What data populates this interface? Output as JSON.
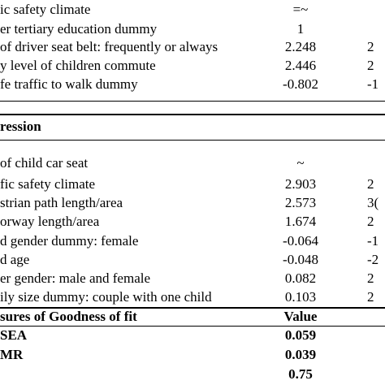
{
  "table": {
    "rows": [
      {
        "label": "ic safety climate",
        "value": "=~"
      },
      {
        "label": "er tertiary education dummy",
        "value": "1"
      },
      {
        "label": "of driver seat belt: frequently or always",
        "value": "2.248",
        "extra": "2"
      },
      {
        "label": "y level of children commute",
        "value": "2.446",
        "extra": "2"
      },
      {
        "label": "fe traffic to walk dummy",
        "value": "-0.802",
        "extra": "-1"
      },
      {
        "label": "ression",
        "bold": true
      },
      {
        "label": "of child car seat",
        "value": "~"
      },
      {
        "label": "fic safety climate",
        "value": "2.903",
        "extra": "2"
      },
      {
        "label": "strian path length/area",
        "value": "2.573",
        "extra": "3("
      },
      {
        "label": "orway length/area",
        "value": "1.674",
        "extra": "2"
      },
      {
        "label": "d gender dummy: female",
        "value": "-0.064",
        "extra": "-1"
      },
      {
        "label": "d age",
        "value": "-0.048",
        "extra": "-2"
      },
      {
        "label": "er gender: male and female",
        "value": "0.082",
        "extra": "2"
      },
      {
        "label": "ily size dummy: couple with one child",
        "value": "0.103",
        "extra": "2"
      },
      {
        "label": "sures of Goodness of fit",
        "value": "Value",
        "bold": true
      },
      {
        "label": "SEA",
        "value": "0.059",
        "bold": true
      },
      {
        "label": "MR",
        "value": "0.039",
        "bold": true
      },
      {
        "value": "0.75",
        "bold": true
      }
    ]
  }
}
